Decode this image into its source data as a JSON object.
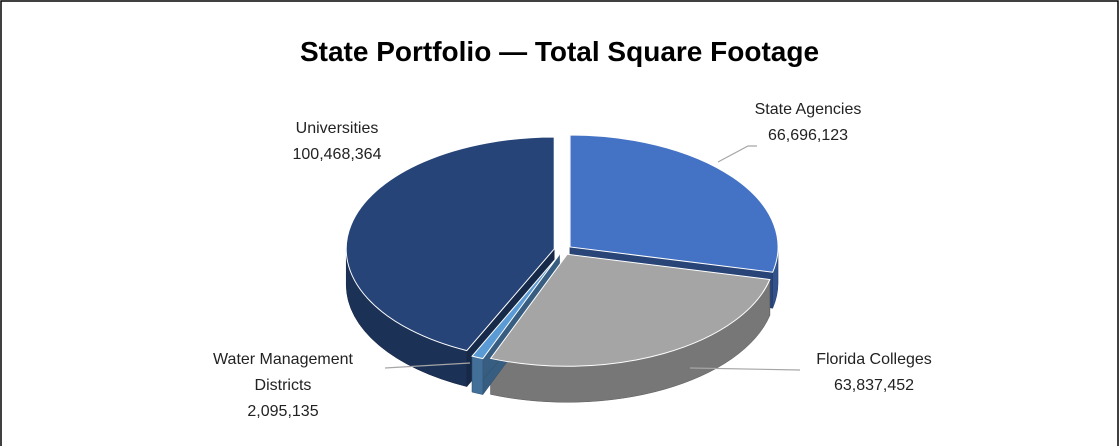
{
  "chart_data": {
    "type": "pie",
    "title": "State Portfolio — Total Square Footage",
    "categories": [
      "State Agencies",
      "Florida Colleges",
      "Water Management Districts",
      "Universities"
    ],
    "values": [
      66696123,
      63837452,
      2095135,
      100468364
    ],
    "value_labels": [
      "66,696,123",
      "63,837,452",
      "2,095,135",
      "100,468,364"
    ],
    "colors": [
      "#4472c4",
      "#a5a5a5",
      "#5b9bd5",
      "#264478"
    ],
    "three_d": true,
    "exploded": true
  }
}
